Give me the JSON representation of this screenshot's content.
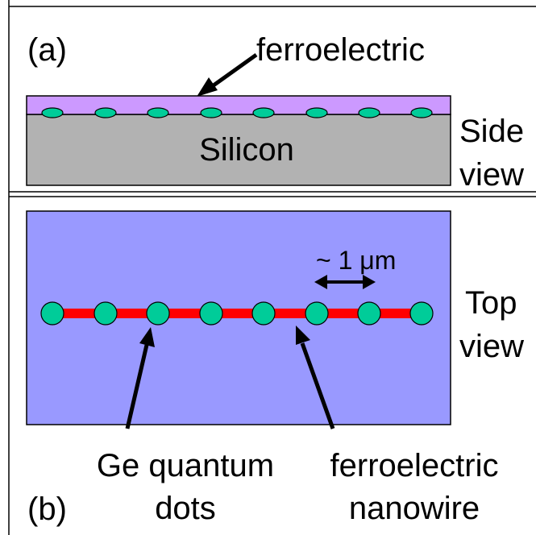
{
  "panel_a": {
    "label": "(a)",
    "ferroelectric_label": "ferroelectric",
    "silicon_label": "Silicon",
    "view_label_line1": "Side",
    "view_label_line2": "view"
  },
  "panel_b": {
    "label": "(b)",
    "spacing_label": "~ 1 μm",
    "view_label_line1": "Top",
    "view_label_line2": "view",
    "dots_label_line1": "Ge quantum",
    "dots_label_line2": "dots",
    "nanowire_label_line1": "ferroelectric",
    "nanowire_label_line2": "nanowire"
  },
  "colors": {
    "ferroelectric_layer": "#cc99ff",
    "silicon": "#b2b2b2",
    "substrate_top": "#9999ff",
    "nanowire": "#ff0000",
    "quantum_dot": "#00cc99",
    "outline": "#000000"
  }
}
